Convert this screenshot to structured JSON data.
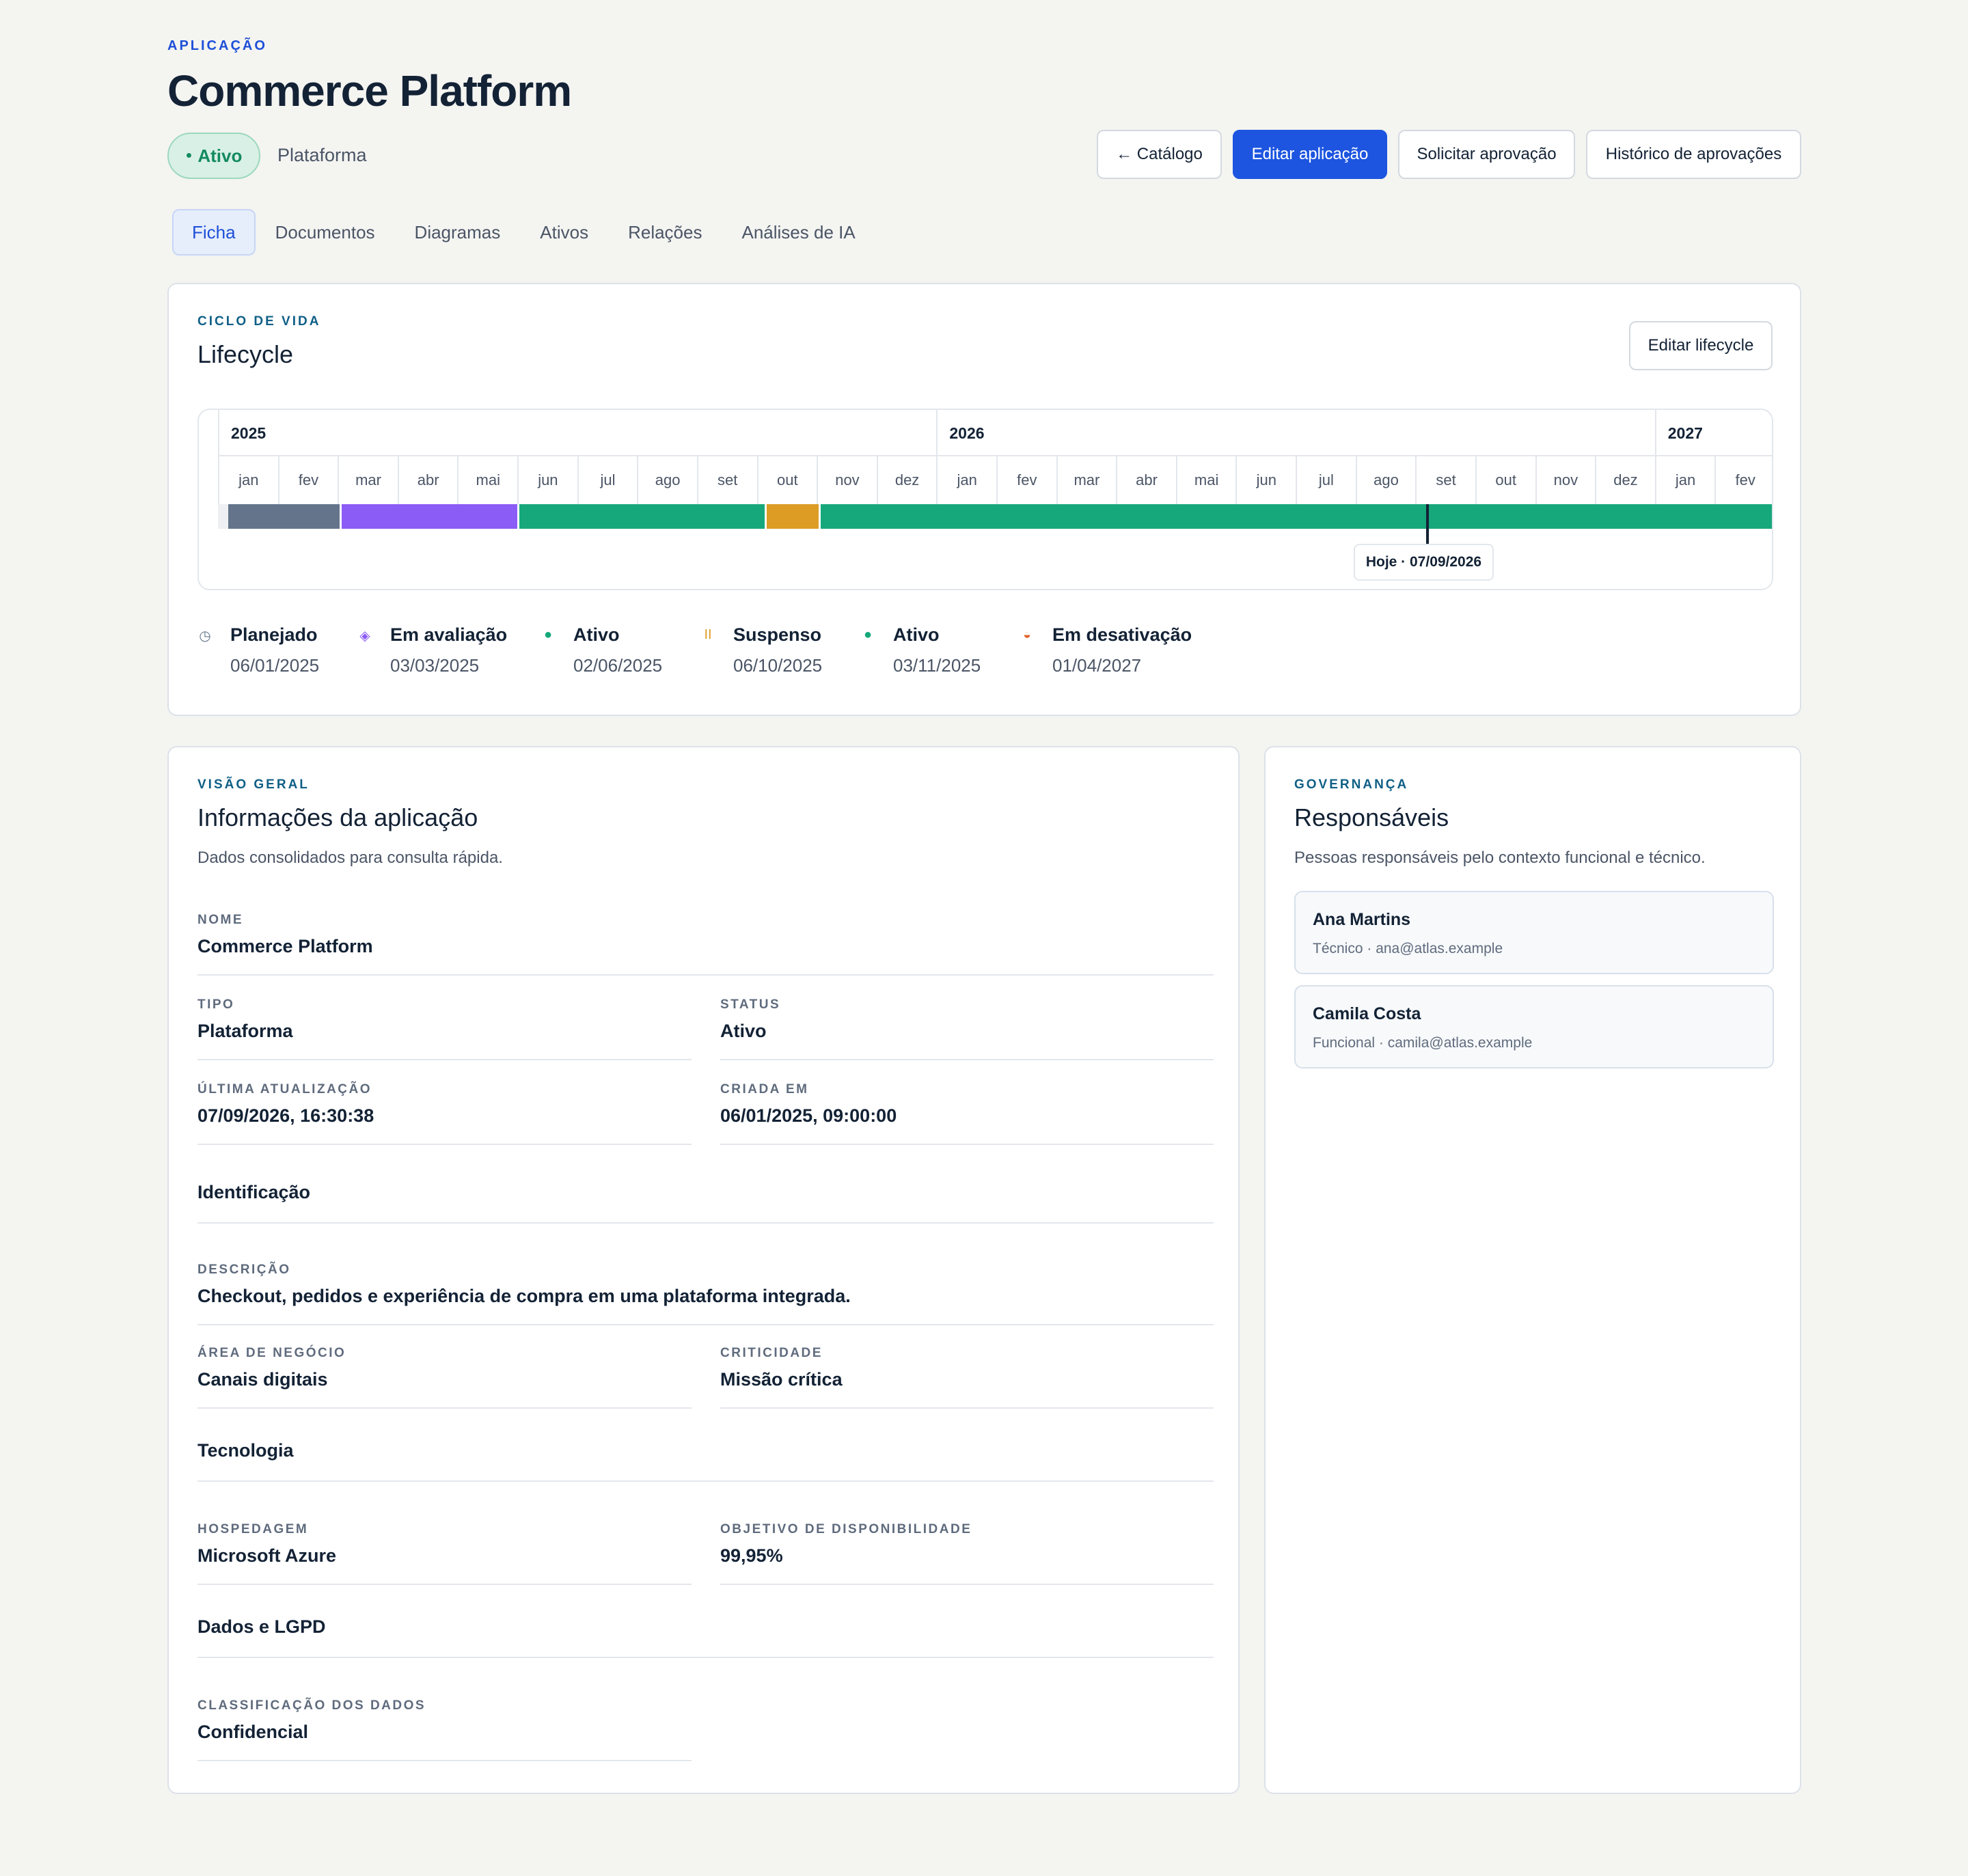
{
  "header": {
    "eyebrow": "APLICAÇÃO",
    "title": "Commerce Platform",
    "status": "Ativo",
    "type": "Plataforma",
    "buttons": {
      "catalog": "← Catálogo",
      "edit": "Editar aplicação",
      "request": "Solicitar aprovação",
      "history": "Histórico de aprovações"
    }
  },
  "tabs": [
    {
      "label": "Ficha",
      "active": true
    },
    {
      "label": "Documentos",
      "active": false
    },
    {
      "label": "Diagramas",
      "active": false
    },
    {
      "label": "Ativos",
      "active": false
    },
    {
      "label": "Relações",
      "active": false
    },
    {
      "label": "Análises de IA",
      "active": false
    }
  ],
  "lifecycle": {
    "eyebrow": "CICLO DE VIDA",
    "title": "Lifecycle",
    "edit_button": "Editar lifecycle",
    "years": [
      "2025",
      "2026",
      "2027"
    ],
    "months": [
      "jan",
      "fev",
      "mar",
      "abr",
      "mai",
      "jun",
      "jul",
      "ago",
      "set",
      "out",
      "nov",
      "dez",
      "jan",
      "fev",
      "mar",
      "abr",
      "mai",
      "jun",
      "jul",
      "ago",
      "set",
      "out",
      "nov",
      "dez",
      "jan",
      "fev"
    ],
    "segments": [
      {
        "phase": "Planejado",
        "start": "06/01/2025",
        "color": "#64748b"
      },
      {
        "phase": "Em avaliação",
        "start": "03/03/2025",
        "color": "#8b5cf6"
      },
      {
        "phase": "Ativo",
        "start": "02/06/2025",
        "color": "#16a87a"
      },
      {
        "phase": "Suspenso",
        "start": "06/10/2025",
        "color": "#dd9d24"
      },
      {
        "phase": "Ativo",
        "start": "03/11/2025",
        "color": "#16a87a"
      }
    ],
    "today_label": "Hoje · 07/09/2026",
    "milestones": [
      {
        "icon": "clock-icon",
        "glyph": "◷",
        "color": "#64748b",
        "label": "Planejado",
        "date": "06/01/2025"
      },
      {
        "icon": "diamond-icon",
        "glyph": "◈",
        "color": "#8b5cf6",
        "label": "Em avaliação",
        "date": "03/03/2025"
      },
      {
        "icon": "dot-icon",
        "glyph": "●",
        "color": "#16a87a",
        "label": "Ativo",
        "date": "02/06/2025"
      },
      {
        "icon": "pause-icon",
        "glyph": "II",
        "color": "#dd9d24",
        "label": "Suspenso",
        "date": "06/10/2025"
      },
      {
        "icon": "dot-icon",
        "glyph": "●",
        "color": "#16a87a",
        "label": "Ativo",
        "date": "03/11/2025"
      },
      {
        "icon": "half-circle-icon",
        "glyph": "◒",
        "color": "#e0642b",
        "label": "Em desativação",
        "date": "01/04/2027"
      }
    ]
  },
  "overview": {
    "eyebrow": "VISÃO GERAL",
    "title": "Informações da aplicação",
    "subtitle": "Dados consolidados para consulta rápida.",
    "fields": {
      "nome": {
        "label": "NOME",
        "value": "Commerce Platform"
      },
      "tipo": {
        "label": "TIPO",
        "value": "Plataforma"
      },
      "status": {
        "label": "STATUS",
        "value": "Ativo"
      },
      "ultima": {
        "label": "ÚLTIMA ATUALIZAÇÃO",
        "value": "07/09/2026, 16:30:38"
      },
      "criada": {
        "label": "CRIADA EM",
        "value": "06/01/2025, 09:00:00"
      },
      "descricao": {
        "label": "DESCRIÇÃO",
        "value": "Checkout, pedidos e experiência de compra em uma plataforma integrada."
      },
      "area": {
        "label": "ÁREA DE NEGÓCIO",
        "value": "Canais digitais"
      },
      "criticidade": {
        "label": "CRITICIDADE",
        "value": "Missão crítica"
      },
      "hospedagem": {
        "label": "HOSPEDAGEM",
        "value": "Microsoft Azure"
      },
      "disponibilidade": {
        "label": "OBJETIVO DE DISPONIBILIDADE",
        "value": "99,95%"
      },
      "classificacao": {
        "label": "CLASSIFICAÇÃO DOS DADOS",
        "value": "Confidencial"
      }
    },
    "sections": {
      "identificacao": "Identificação",
      "tecnologia": "Tecnologia",
      "dados": "Dados e LGPD"
    }
  },
  "governance": {
    "eyebrow": "GOVERNANÇA",
    "title": "Responsáveis",
    "subtitle": "Pessoas responsáveis pelo contexto funcional e técnico.",
    "people": [
      {
        "name": "Ana Martins",
        "role": "Técnico · ana@atlas.example"
      },
      {
        "name": "Camila Costa",
        "role": "Funcional · camila@atlas.example"
      }
    ]
  },
  "colors": {
    "primary": "#1d55e0",
    "active_green": "#16a87a",
    "background": "#f4f4f1"
  }
}
